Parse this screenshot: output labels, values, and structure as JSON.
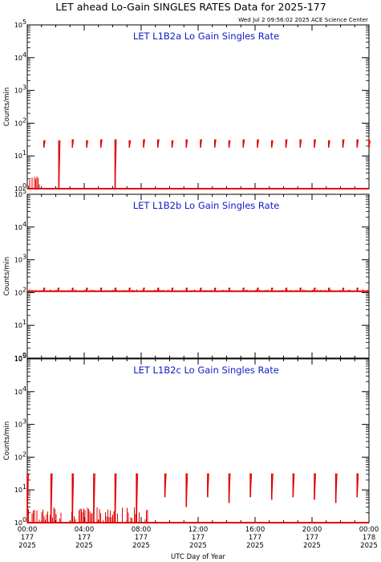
{
  "title": "LET ahead Lo-Gain SINGLES RATES Data for 2025-177",
  "timestamp": "Wed Jul  2 09:56:02 2025 ACE Science Center",
  "colors": {
    "data": "#e00000",
    "panel_title": "#1020c8",
    "axes": "#000000"
  },
  "chart_data": [
    {
      "type": "line",
      "title": "LET L1B2a Lo Gain Singles Rate",
      "ylabel": "Counts/min",
      "yscale": "log",
      "ylim": [
        1,
        100000
      ],
      "xlim": [
        0,
        24
      ],
      "baseline": 1,
      "spikes": {
        "x": [
          1.17,
          2.22,
          3.17,
          4.17,
          5.17,
          6.17,
          7.17,
          8.17,
          9.17,
          10.17,
          11.17,
          12.17,
          13.17,
          14.17,
          15.17,
          16.17,
          17.17,
          18.17,
          19.17,
          20.17,
          21.17,
          22.17,
          23.17,
          24.0
        ],
        "y": [
          30,
          30,
          32,
          30,
          32,
          32,
          30,
          32,
          32,
          30,
          32,
          32,
          32,
          30,
          32,
          32,
          30,
          32,
          32,
          32,
          30,
          32,
          32,
          30
        ],
        "min": [
          18,
          1,
          18,
          18,
          18,
          1,
          18,
          18,
          18,
          18,
          18,
          18,
          18,
          18,
          18,
          18,
          18,
          18,
          18,
          18,
          18,
          18,
          18,
          18
        ]
      },
      "noise": {
        "x_start": 0,
        "x_end": 0.9,
        "max": 3
      }
    },
    {
      "type": "line",
      "title": "LET L1B2b Lo Gain Singles Rate",
      "ylabel": "Counts/min",
      "yscale": "log",
      "ylim": [
        1,
        100000
      ],
      "xlim": [
        0,
        24
      ],
      "baseline": 110,
      "spikes": {
        "x": [
          1.17,
          2.17,
          3.17,
          4.17,
          5.17,
          6.17,
          7.17,
          8.17,
          9.17,
          10.17,
          11.17,
          12.17,
          13.17,
          14.17,
          15.17,
          16.17,
          17.17,
          18.17,
          19.17,
          20.17,
          21.17,
          22.17,
          23.17
        ],
        "y": [
          140,
          140,
          140,
          140,
          140,
          140,
          140,
          140,
          140,
          140,
          140,
          140,
          140,
          140,
          140,
          140,
          140,
          140,
          140,
          140,
          140,
          140,
          140
        ],
        "min": [
          110,
          110,
          110,
          110,
          110,
          110,
          110,
          110,
          110,
          110,
          110,
          110,
          110,
          110,
          110,
          110,
          110,
          110,
          110,
          110,
          110,
          110,
          110
        ]
      },
      "noise": {
        "x_start": 0,
        "x_end": 24,
        "max": 125
      }
    },
    {
      "type": "line",
      "title": "LET L1B2c Lo Gain Singles Rate",
      "ylabel": "Counts/min",
      "yscale": "log",
      "ylim": [
        1,
        100000
      ],
      "xlim": [
        0,
        24
      ],
      "baseline": 1,
      "spikes": {
        "x": [
          0.0,
          1.67,
          3.17,
          4.67,
          6.17,
          7.67,
          9.67,
          11.17,
          12.67,
          14.17,
          15.67,
          17.17,
          18.67,
          20.17,
          21.67,
          23.17
        ],
        "y": [
          32,
          32,
          32,
          32,
          32,
          32,
          32,
          32,
          32,
          32,
          32,
          32,
          32,
          32,
          32,
          32
        ],
        "min": [
          1,
          1,
          1,
          1,
          1,
          1,
          6,
          3,
          6,
          4,
          6,
          5,
          6,
          5,
          4,
          6
        ]
      },
      "noise": {
        "x_start": 0,
        "x_end": 8.5,
        "max": 3
      }
    }
  ],
  "x_axis": {
    "label": "UTC Day of Year",
    "ticks": [
      {
        "time": "00:00",
        "doy": "177",
        "year": "2025",
        "hour": 0
      },
      {
        "time": "04:00",
        "doy": "177",
        "year": "2025",
        "hour": 4
      },
      {
        "time": "08:00",
        "doy": "177",
        "year": "2025",
        "hour": 8
      },
      {
        "time": "12:00",
        "doy": "177",
        "year": "2025",
        "hour": 12
      },
      {
        "time": "16:00",
        "doy": "177",
        "year": "2025",
        "hour": 16
      },
      {
        "time": "20:00",
        "doy": "177",
        "year": "2025",
        "hour": 20
      },
      {
        "time": "00:00",
        "doy": "178",
        "year": "2025",
        "hour": 24
      }
    ]
  },
  "y_tick_labels": [
    "10",
    "10",
    "10",
    "10",
    "10",
    "10"
  ],
  "y_tick_exponents": [
    "0",
    "1",
    "2",
    "3",
    "4",
    "5"
  ]
}
